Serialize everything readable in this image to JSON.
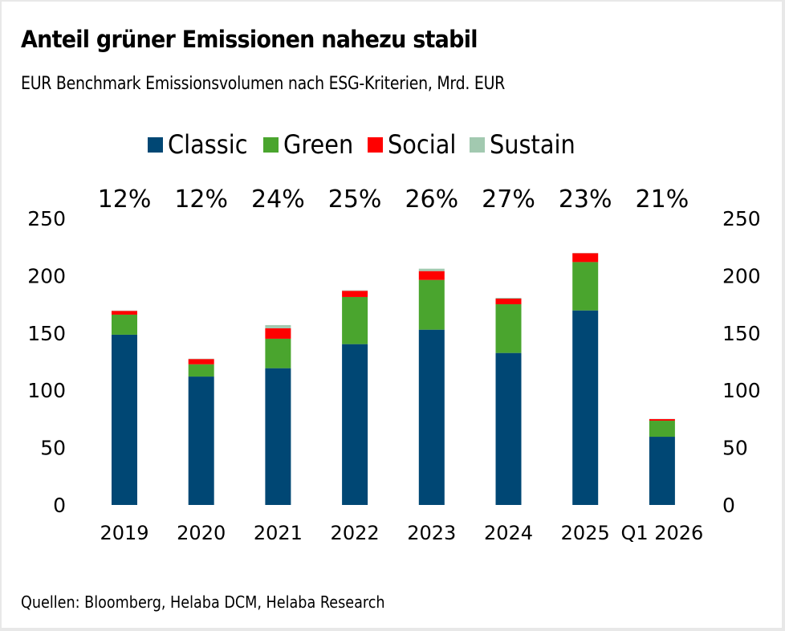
{
  "chart_data": {
    "type": "bar",
    "stacked": true,
    "title": "Anteil grüner Emissionen nahezu stabil",
    "subtitle": "EUR Benchmark Emissionsvolumen nach ESG-Kriterien, Mrd. EUR",
    "xlabel": "",
    "ylabel": "",
    "ylim": [
      0,
      250
    ],
    "yticks": [
      "0",
      "50",
      "100",
      "150",
      "200",
      "250"
    ],
    "ytick_values": [
      0,
      50,
      100,
      150,
      200,
      250
    ],
    "secondary_axis": true,
    "grid": false,
    "legend_position": "top-center",
    "categories": [
      "2019",
      "2020",
      "2021",
      "2022",
      "2023",
      "2024",
      "2025",
      "Q1 2026"
    ],
    "annotations": [
      "12%",
      "12%",
      "24%",
      "25%",
      "26%",
      "27%",
      "23%",
      "21%"
    ],
    "series": [
      {
        "name": "Classic",
        "color": "#004774",
        "values": [
          148.5,
          112.0,
          119.3,
          140.3,
          152.9,
          132.6,
          169.7,
          59.5
        ]
      },
      {
        "name": "Green",
        "color": "#4aa52e",
        "values": [
          17.5,
          10.7,
          25.7,
          41.1,
          43.4,
          42.5,
          42.2,
          14.0
        ]
      },
      {
        "name": "Social",
        "color": "#ff0000",
        "values": [
          3.3,
          4.6,
          9.1,
          5.4,
          7.7,
          4.9,
          7.7,
          1.4
        ]
      },
      {
        "name": "Sustain",
        "color": "#a2c9b0",
        "values": [
          0.3,
          0.3,
          2.8,
          0.4,
          2.1,
          0.7,
          0.2,
          0.2
        ]
      }
    ],
    "source": "Quellen: Bloomberg, Helaba DCM, Helaba Research"
  }
}
